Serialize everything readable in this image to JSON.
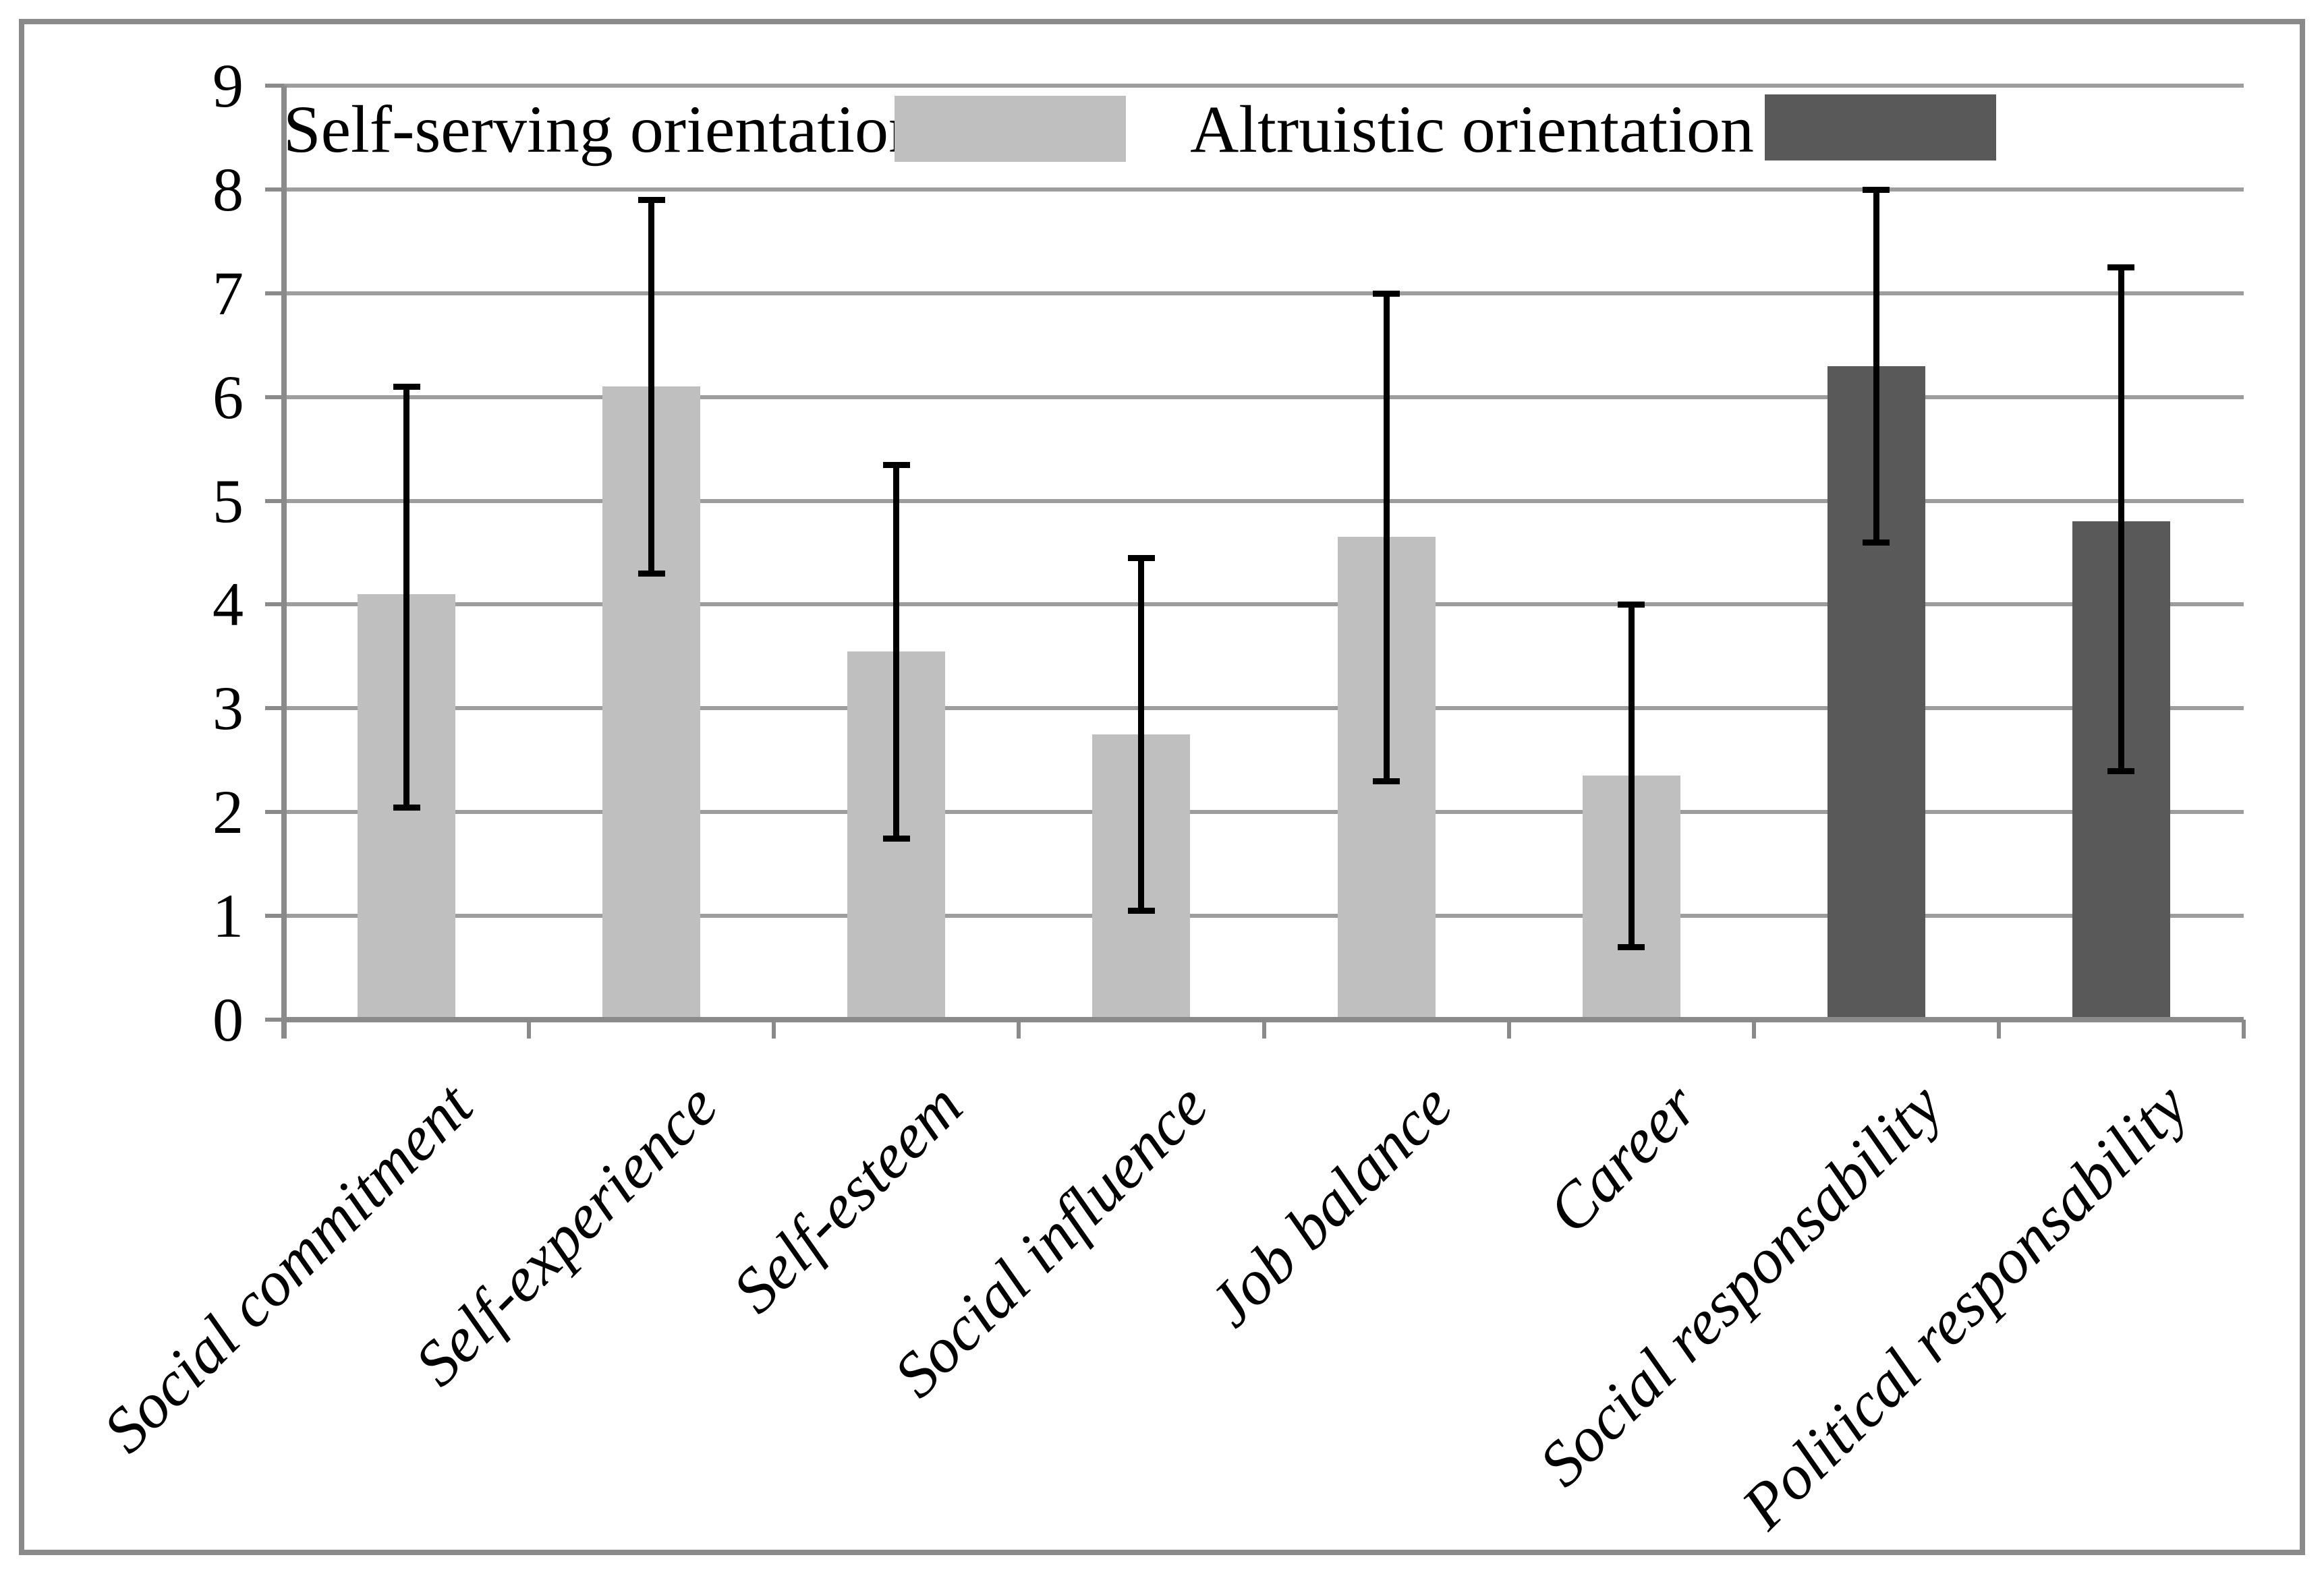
{
  "chart_data": {
    "type": "bar",
    "title": "",
    "xlabel": "",
    "ylabel": "",
    "categories": [
      "Social commitment",
      "Self-experience",
      "Self-esteem",
      "Social influence",
      "Job balance",
      "Career",
      "Social responsability",
      "Political responsability"
    ],
    "values": [
      4.1,
      6.1,
      3.55,
      2.75,
      4.65,
      2.35,
      6.3,
      4.8
    ],
    "error_low": [
      2.05,
      4.3,
      1.75,
      1.05,
      2.3,
      0.7,
      4.6,
      2.4
    ],
    "error_high": [
      6.1,
      7.9,
      5.35,
      4.45,
      7.0,
      4.0,
      8.0,
      7.25
    ],
    "legend_index": [
      0,
      0,
      0,
      0,
      0,
      0,
      1,
      1
    ],
    "legend": [
      {
        "label": "Self-serving orientation",
        "color": "#bfbfbf"
      },
      {
        "label": "Altruistic orientation",
        "color": "#595959"
      }
    ],
    "legend_position": "top-inside",
    "ylim": [
      0,
      9
    ],
    "yticks": [
      0,
      1,
      2,
      3,
      4,
      5,
      6,
      7,
      8,
      9
    ],
    "grid": true,
    "colors": {
      "gridline": "#9d9d9d",
      "axis": "#8a8a8a",
      "error_bar": "#000000",
      "frame": "#8a8a8a",
      "background": "#ffffff",
      "text": "#000000"
    }
  }
}
